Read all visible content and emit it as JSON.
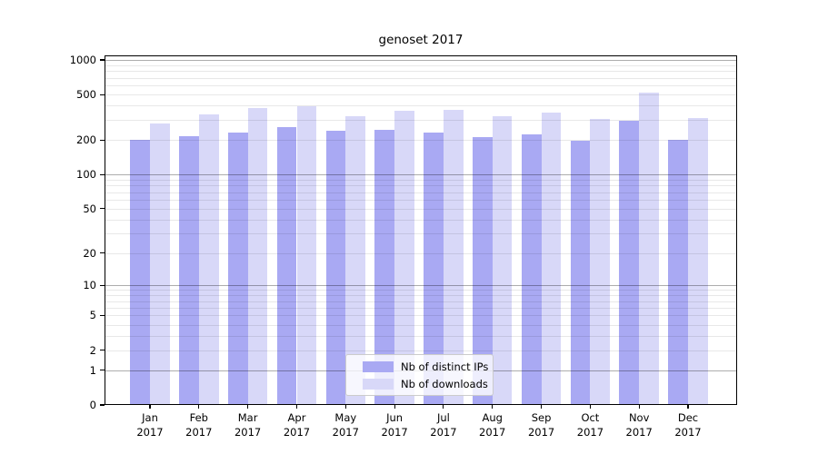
{
  "chart_data": {
    "type": "bar",
    "title": "genoset 2017",
    "categories": [
      "Jan",
      "Feb",
      "Mar",
      "Apr",
      "May",
      "Jun",
      "Jul",
      "Aug",
      "Sep",
      "Oct",
      "Nov",
      "Dec"
    ],
    "x_tick_second_line": "2017",
    "series": [
      {
        "name": "Nb of distinct IPs",
        "color": "#a9a9f3",
        "values": [
          202,
          215,
          231,
          258,
          240,
          247,
          234,
          214,
          225,
          197,
          297,
          202
        ]
      },
      {
        "name": "Nb of downloads",
        "color": "#d8d8f8",
        "values": [
          278,
          333,
          383,
          395,
          324,
          361,
          370,
          326,
          346,
          308,
          515,
          314
        ]
      }
    ],
    "y_scale": "log10(1+v)",
    "ylim": [
      0,
      1100
    ],
    "y_major_ticks": [
      0,
      1,
      10,
      100,
      1000
    ],
    "y_labeled_minor_ticks": [
      2,
      5,
      20,
      50,
      200,
      500
    ],
    "y_unlabeled_minor_ticks": [
      3,
      4,
      6,
      7,
      8,
      9,
      30,
      40,
      60,
      70,
      80,
      90,
      300,
      400,
      600,
      700,
      800,
      900
    ],
    "y_tick_labels": [
      "0",
      "1",
      "2",
      "5",
      "10",
      "20",
      "50",
      "100",
      "200",
      "500",
      "1000"
    ],
    "grid": true,
    "legend_position": "lower-center",
    "legend": {
      "items": [
        {
          "label": "Nb of distinct IPs",
          "color": "#a9a9f3"
        },
        {
          "label": "Nb of downloads",
          "color": "#d8d8f8"
        }
      ]
    },
    "colors": {
      "distinct_ips": "#a9a9f3",
      "downloads": "#d8d8f8",
      "major_grid": "#b0b0b0",
      "minor_grid": "#e8e8e8",
      "axis": "#000000"
    }
  }
}
